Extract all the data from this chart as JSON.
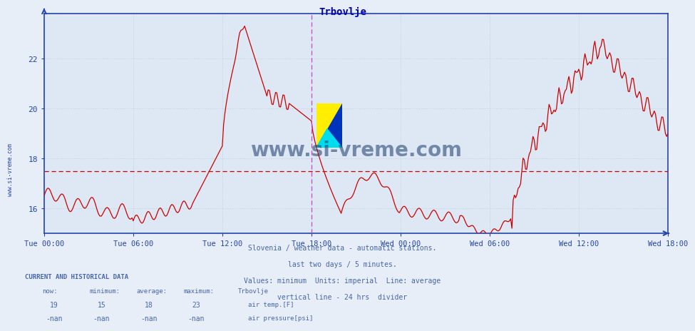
{
  "title": "Trbovlje",
  "title_color": "#0000bb",
  "bg_color": "#e8eef8",
  "plot_bg_color": "#dde8f4",
  "line_color": "#cc0000",
  "avg_line_color": "#cc0000",
  "avg_line_y": 17.5,
  "vline_color": "#cc44cc",
  "yticks": [
    16,
    18,
    20,
    22
  ],
  "ymin": 15.0,
  "ymax": 23.8,
  "xtick_labels": [
    "Tue 00:00",
    "Tue 06:00",
    "Tue 12:00",
    "Tue 18:00",
    "Wed 00:00",
    "Wed 06:00",
    "Wed 12:00",
    "Wed 18:00"
  ],
  "xtick_positions": [
    0,
    72,
    144,
    216,
    288,
    360,
    432,
    504
  ],
  "vline_positions": [
    216,
    504
  ],
  "n_points": 505,
  "footer_lines": [
    "Slovenia / weather data - automatic stations.",
    "last two days / 5 minutes.",
    "Values: minimum  Units: imperial  Line: average",
    "vertical line - 24 hrs  divider"
  ],
  "footer_color": "#4466aa",
  "current_label": "CURRENT AND HISTORICAL DATA",
  "table_headers": [
    "now:",
    "minimum:",
    "average:",
    "maximum:",
    "Trbovlje"
  ],
  "table_row1": [
    "19",
    "15",
    "18",
    "23"
  ],
  "table_row2": [
    "-nan",
    "-nan",
    "-nan",
    "-nan"
  ],
  "legend_color1": "#cc0000",
  "legend_color2": "#ddcc00",
  "legend_label1": "air temp.[F]",
  "legend_label2": "air pressure[psi]",
  "watermark": "www.si-vreme.com",
  "watermark_color": "#1a3a6a",
  "grid_color": "#bbccdd",
  "axis_color": "#2244aa",
  "sidebar_text": "www.si-vreme.com",
  "sidebar_color": "#2244aa"
}
